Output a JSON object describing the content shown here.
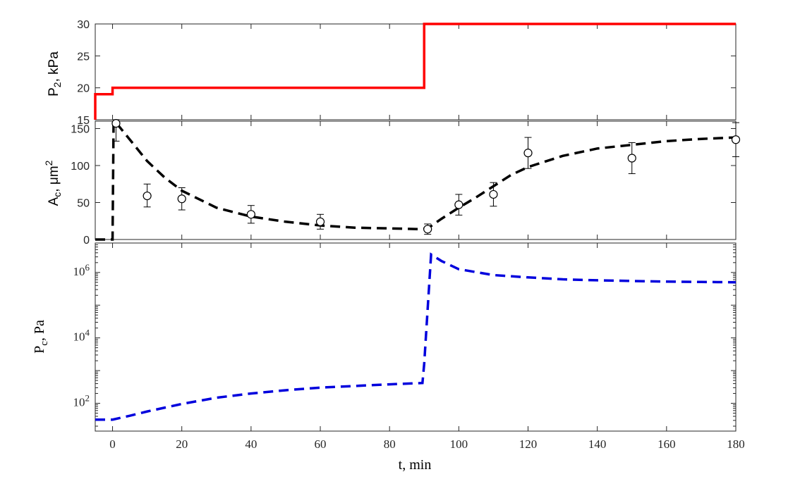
{
  "chart_data": [
    {
      "type": "line",
      "panel": "top",
      "ylabel_main": "P",
      "ylabel_sub": "2",
      "ylabel_rest": ",  kPa",
      "xlim": [
        -5,
        180
      ],
      "ylim": [
        15,
        30
      ],
      "yticks": [
        "15",
        "20",
        "25",
        "30"
      ],
      "grid": false,
      "line_color": "#ff0000",
      "series": [
        {
          "x": [
            -5,
            -5,
            0,
            0,
            90,
            90,
            180
          ],
          "y": [
            15,
            19,
            19,
            20,
            20,
            30,
            30
          ]
        }
      ]
    },
    {
      "type": "scatter",
      "panel": "middle",
      "ylabel_main": "A",
      "ylabel_sub": "c",
      "ylabel_rest": ", μm",
      "ylabel_sup": "2",
      "xlim": [
        -5,
        180
      ],
      "ylim": [
        0,
        160
      ],
      "yticks": [
        "0",
        "50",
        "100",
        "150"
      ],
      "grid": false,
      "line_color": "#000000",
      "model_curve": {
        "x": [
          -5,
          0,
          0.3,
          1,
          5,
          10,
          15,
          20,
          30,
          40,
          50,
          60,
          70,
          80,
          89,
          91,
          95,
          100,
          105,
          110,
          115,
          120,
          130,
          140,
          150,
          160,
          170,
          180
        ],
        "y": [
          0,
          0,
          160,
          158,
          135,
          106,
          84,
          66,
          43,
          31,
          24,
          19,
          16,
          15,
          14,
          15,
          28,
          43,
          57,
          72,
          87,
          98,
          113,
          123,
          128,
          133,
          136,
          138
        ]
      },
      "points": [
        {
          "x": 1,
          "y": 157,
          "err_low": 133,
          "err_high": 162
        },
        {
          "x": 10,
          "y": 59,
          "err_low": 44,
          "err_high": 75
        },
        {
          "x": 20,
          "y": 55,
          "err_low": 40,
          "err_high": 70
        },
        {
          "x": 40,
          "y": 34,
          "err_low": 22,
          "err_high": 46
        },
        {
          "x": 60,
          "y": 24,
          "err_low": 14,
          "err_high": 34
        },
        {
          "x": 91,
          "y": 14,
          "err_low": 7,
          "err_high": 21
        },
        {
          "x": 100,
          "y": 47,
          "err_low": 33,
          "err_high": 61
        },
        {
          "x": 110,
          "y": 61,
          "err_low": 45,
          "err_high": 77
        },
        {
          "x": 120,
          "y": 117,
          "err_low": 96,
          "err_high": 138
        },
        {
          "x": 150,
          "y": 110,
          "err_low": 89,
          "err_high": 131
        },
        {
          "x": 180,
          "y": 135,
          "err_low": 112,
          "err_high": 158
        }
      ]
    },
    {
      "type": "line",
      "panel": "bottom",
      "ylabel_main": "P",
      "ylabel_sub": "c",
      "ylabel_rest": ", Pa",
      "xlabel": "t, min",
      "yscale": "log",
      "xlim": [
        -5,
        180
      ],
      "ylim_log10": [
        1.15,
        6.9
      ],
      "yticks": [
        {
          "base": "10",
          "exp": "2",
          "log10": 2
        },
        {
          "base": "10",
          "exp": "4",
          "log10": 4
        },
        {
          "base": "10",
          "exp": "6",
          "log10": 6
        }
      ],
      "xticks": [
        "0",
        "20",
        "40",
        "60",
        "80",
        "100",
        "120",
        "140",
        "160",
        "180"
      ],
      "grid": false,
      "line_color": "#0000dd",
      "series": [
        {
          "x": [
            -5,
            0,
            5,
            10,
            20,
            30,
            40,
            50,
            60,
            70,
            80,
            89.5,
            90,
            92,
            95,
            100,
            110,
            120,
            130,
            140,
            150,
            160,
            170,
            180
          ],
          "log10_y": [
            1.5,
            1.5,
            1.62,
            1.75,
            1.98,
            2.17,
            2.3,
            2.4,
            2.48,
            2.53,
            2.58,
            2.62,
            3.2,
            6.55,
            6.35,
            6.1,
            5.92,
            5.85,
            5.79,
            5.76,
            5.74,
            5.72,
            5.71,
            5.7
          ]
        }
      ]
    }
  ]
}
